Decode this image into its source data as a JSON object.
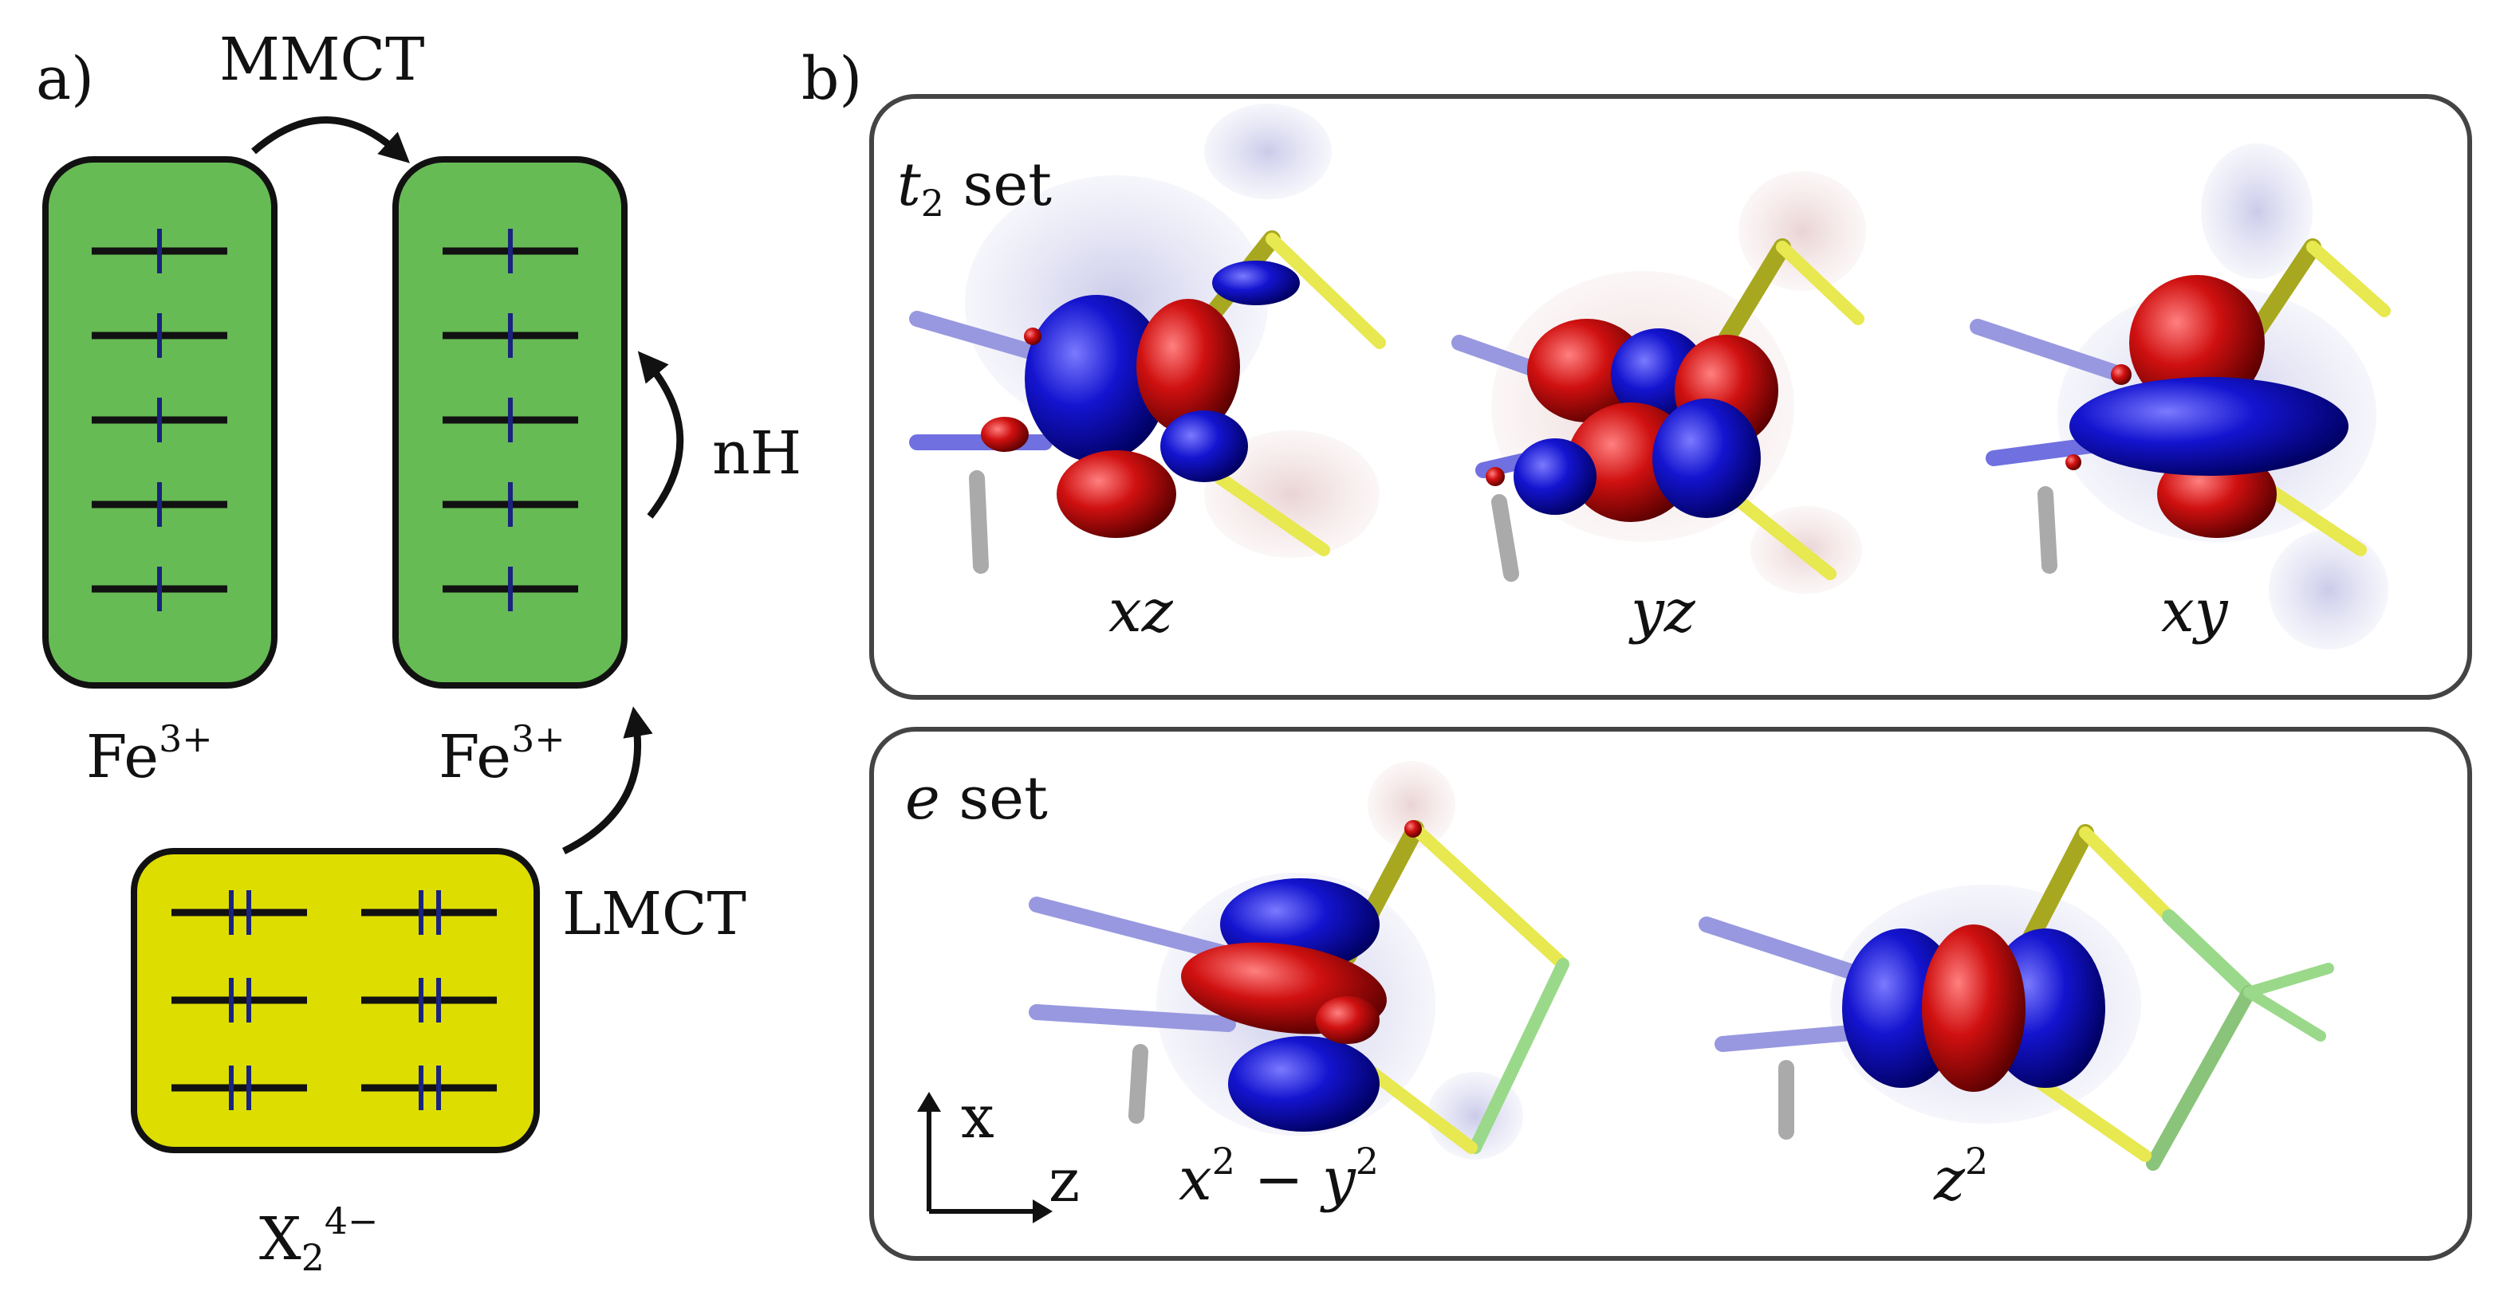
{
  "panel_a": {
    "label": "a)",
    "mmct": "MMCT",
    "nh": "nH",
    "lmct": "LMCT",
    "fe_left": {
      "base": "Fe",
      "sup": "3+"
    },
    "fe_right": {
      "base": "Fe",
      "sup": "3+"
    },
    "ligand": {
      "base": "X",
      "sub": "2",
      "sup": "4−"
    },
    "colors": {
      "fe_box": "#66bb55",
      "ligand_box": "#dddd00",
      "level": "#111111",
      "spin": "#1a237e"
    },
    "fe_levels": 5,
    "ligand_levels_per_column": 3
  },
  "panel_b": {
    "label": "b)",
    "t2": {
      "title_var": "t",
      "title_sub": "2",
      "title_rest": " set",
      "orbitals": [
        "xz",
        "yz",
        "xy"
      ]
    },
    "e": {
      "title_var": "e",
      "title_rest": " set",
      "orbitals": [
        {
          "base": "x",
          "sup1": "2",
          "mid": " − y",
          "sup2": "2"
        },
        {
          "base": "z",
          "sup1": "2"
        }
      ]
    },
    "axes": {
      "x": "x",
      "z": "z"
    },
    "colors": {
      "lobe_pos": "#1010cc",
      "lobe_neg": "#cc1111",
      "bond_n": "#4d4de0",
      "bond_s": "#e0e040",
      "bond_cl": "#9ad98a"
    }
  }
}
